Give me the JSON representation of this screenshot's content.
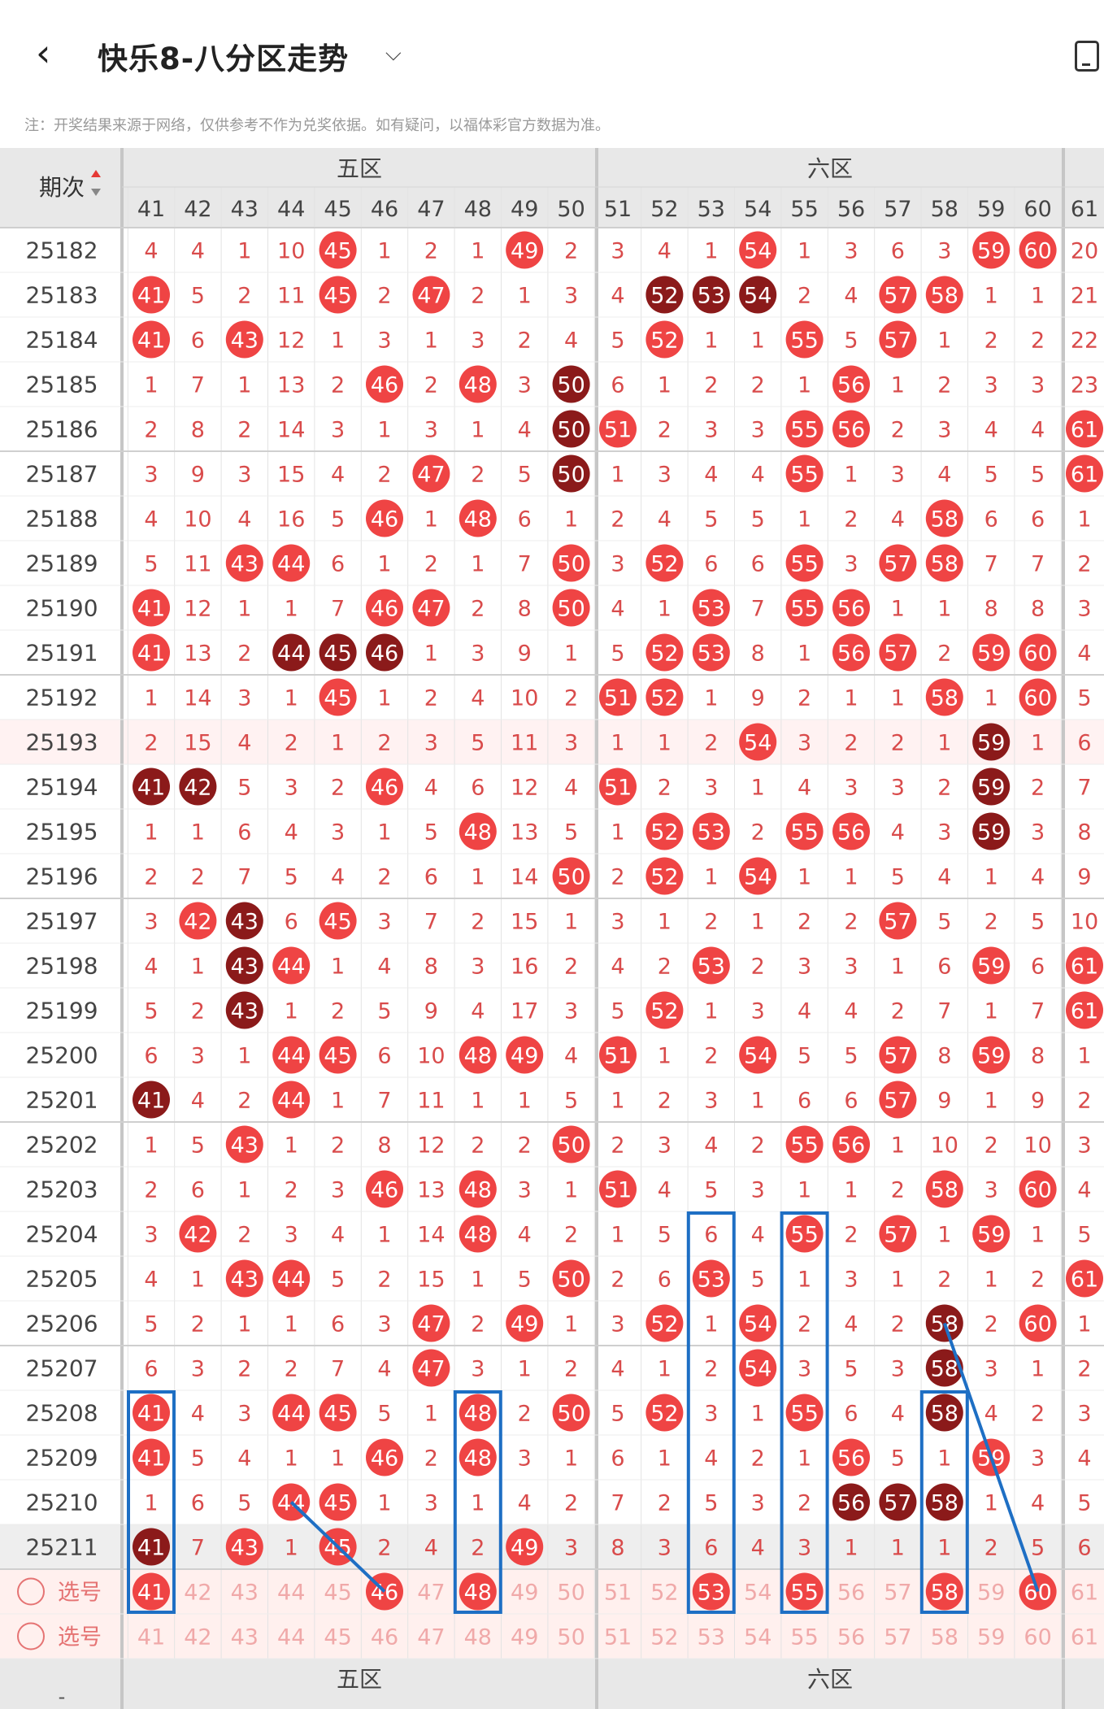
{
  "header": {
    "title": "快乐8-八分区走势",
    "back_icon": "chevron-left-icon",
    "dropdown_icon": "chevron-down-icon",
    "right_icon": "device-screen-icon"
  },
  "note": "注：开奖结果来源于网络，仅供参考不作为兑奖依据。如有疑问，以福体彩官方数据为准。",
  "table": {
    "period_header": "期次",
    "sort_icon": "sort-updown-icon",
    "zones": [
      {
        "label": "五区",
        "cols": [
          41,
          42,
          43,
          44,
          45,
          46,
          47,
          48,
          49,
          50
        ]
      },
      {
        "label": "六区",
        "cols": [
          51,
          52,
          53,
          54,
          55,
          56,
          57,
          58,
          59,
          60
        ]
      },
      {
        "label": "",
        "cols": [
          61
        ]
      }
    ],
    "columns": [
      41,
      42,
      43,
      44,
      45,
      46,
      47,
      48,
      49,
      50,
      51,
      52,
      53,
      54,
      55,
      56,
      57,
      58,
      59,
      60,
      61
    ],
    "rows": [
      {
        "period": "25182",
        "v": [
          "4",
          "4",
          "1",
          "10",
          "R45",
          "1",
          "2",
          "1",
          "R49",
          "2",
          "3",
          "4",
          "1",
          "R54",
          "1",
          "3",
          "6",
          "3",
          "R59",
          "R60",
          "20"
        ]
      },
      {
        "period": "25183",
        "v": [
          "R41",
          "5",
          "2",
          "11",
          "R45",
          "2",
          "R47",
          "2",
          "1",
          "3",
          "4",
          "D52",
          "D53",
          "D54",
          "2",
          "4",
          "R57",
          "R58",
          "1",
          "1",
          "21"
        ]
      },
      {
        "period": "25184",
        "v": [
          "R41",
          "6",
          "R43",
          "12",
          "1",
          "3",
          "1",
          "3",
          "2",
          "4",
          "5",
          "R52",
          "1",
          "1",
          "R55",
          "5",
          "R57",
          "1",
          "2",
          "2",
          "22"
        ]
      },
      {
        "period": "25185",
        "v": [
          "1",
          "7",
          "1",
          "13",
          "2",
          "R46",
          "2",
          "R48",
          "3",
          "D50",
          "6",
          "1",
          "2",
          "2",
          "1",
          "R56",
          "1",
          "2",
          "3",
          "3",
          "23"
        ]
      },
      {
        "period": "25186",
        "v": [
          "2",
          "8",
          "2",
          "14",
          "3",
          "1",
          "3",
          "1",
          "4",
          "D50",
          "R51",
          "2",
          "3",
          "3",
          "R55",
          "R56",
          "2",
          "3",
          "4",
          "4",
          "R61"
        ]
      },
      {
        "period": "25187",
        "v": [
          "3",
          "9",
          "3",
          "15",
          "4",
          "2",
          "R47",
          "2",
          "5",
          "D50",
          "1",
          "3",
          "4",
          "4",
          "R55",
          "1",
          "3",
          "4",
          "5",
          "5",
          "R61"
        ]
      },
      {
        "period": "25188",
        "v": [
          "4",
          "10",
          "4",
          "16",
          "5",
          "R46",
          "1",
          "R48",
          "6",
          "1",
          "2",
          "4",
          "5",
          "5",
          "1",
          "2",
          "4",
          "R58",
          "6",
          "6",
          "1"
        ]
      },
      {
        "period": "25189",
        "v": [
          "5",
          "11",
          "R43",
          "R44",
          "6",
          "1",
          "2",
          "1",
          "7",
          "R50",
          "3",
          "R52",
          "6",
          "6",
          "R55",
          "3",
          "R57",
          "R58",
          "7",
          "7",
          "2"
        ]
      },
      {
        "period": "25190",
        "v": [
          "R41",
          "12",
          "1",
          "1",
          "7",
          "R46",
          "R47",
          "2",
          "8",
          "R50",
          "4",
          "1",
          "R53",
          "7",
          "R55",
          "R56",
          "1",
          "1",
          "8",
          "8",
          "3"
        ]
      },
      {
        "period": "25191",
        "v": [
          "R41",
          "13",
          "2",
          "D44",
          "D45",
          "D46",
          "1",
          "3",
          "9",
          "1",
          "5",
          "R52",
          "R53",
          "8",
          "1",
          "R56",
          "R57",
          "2",
          "R59",
          "R60",
          "4"
        ]
      },
      {
        "period": "25192",
        "v": [
          "1",
          "14",
          "3",
          "1",
          "R45",
          "1",
          "2",
          "4",
          "10",
          "2",
          "R51",
          "R52",
          "1",
          "9",
          "2",
          "1",
          "1",
          "R58",
          "1",
          "R60",
          "5"
        ]
      },
      {
        "period": "25193",
        "v": [
          "2",
          "15",
          "4",
          "2",
          "1",
          "2",
          "3",
          "5",
          "11",
          "3",
          "1",
          "1",
          "2",
          "R54",
          "3",
          "2",
          "2",
          "1",
          "D59",
          "1",
          "6"
        ]
      },
      {
        "period": "25194",
        "v": [
          "D41",
          "D42",
          "5",
          "3",
          "2",
          "R46",
          "4",
          "6",
          "12",
          "4",
          "R51",
          "2",
          "3",
          "1",
          "4",
          "3",
          "3",
          "2",
          "D59",
          "2",
          "7"
        ]
      },
      {
        "period": "25195",
        "v": [
          "1",
          "1",
          "6",
          "4",
          "3",
          "1",
          "5",
          "R48",
          "13",
          "5",
          "1",
          "R52",
          "R53",
          "2",
          "R55",
          "R56",
          "4",
          "3",
          "D59",
          "3",
          "8"
        ]
      },
      {
        "period": "25196",
        "v": [
          "2",
          "2",
          "7",
          "5",
          "4",
          "2",
          "6",
          "1",
          "14",
          "R50",
          "2",
          "R52",
          "1",
          "R54",
          "1",
          "1",
          "5",
          "4",
          "1",
          "4",
          "9"
        ]
      },
      {
        "period": "25197",
        "v": [
          "3",
          "R42",
          "D43",
          "6",
          "R45",
          "3",
          "7",
          "2",
          "15",
          "1",
          "3",
          "1",
          "2",
          "1",
          "2",
          "2",
          "R57",
          "5",
          "2",
          "5",
          "10"
        ]
      },
      {
        "period": "25198",
        "v": [
          "4",
          "1",
          "D43",
          "R44",
          "1",
          "4",
          "8",
          "3",
          "16",
          "2",
          "4",
          "2",
          "R53",
          "2",
          "3",
          "3",
          "1",
          "6",
          "R59",
          "6",
          "R61"
        ]
      },
      {
        "period": "25199",
        "v": [
          "5",
          "2",
          "D43",
          "1",
          "2",
          "5",
          "9",
          "4",
          "17",
          "3",
          "5",
          "R52",
          "1",
          "3",
          "4",
          "4",
          "2",
          "7",
          "1",
          "7",
          "R61"
        ]
      },
      {
        "period": "25200",
        "v": [
          "6",
          "3",
          "1",
          "R44",
          "R45",
          "6",
          "10",
          "R48",
          "R49",
          "4",
          "R51",
          "1",
          "2",
          "R54",
          "5",
          "5",
          "R57",
          "8",
          "R59",
          "8",
          "1"
        ]
      },
      {
        "period": "25201",
        "v": [
          "D41",
          "4",
          "2",
          "R44",
          "1",
          "7",
          "11",
          "1",
          "1",
          "5",
          "1",
          "2",
          "3",
          "1",
          "6",
          "6",
          "R57",
          "9",
          "1",
          "9",
          "2"
        ]
      },
      {
        "period": "25202",
        "v": [
          "1",
          "5",
          "R43",
          "1",
          "2",
          "8",
          "12",
          "2",
          "2",
          "R50",
          "2",
          "3",
          "4",
          "2",
          "R55",
          "R56",
          "1",
          "10",
          "2",
          "10",
          "3"
        ]
      },
      {
        "period": "25203",
        "v": [
          "2",
          "6",
          "1",
          "2",
          "3",
          "R46",
          "13",
          "R48",
          "3",
          "1",
          "R51",
          "4",
          "5",
          "3",
          "1",
          "1",
          "2",
          "R58",
          "3",
          "R60",
          "4"
        ]
      },
      {
        "period": "25204",
        "v": [
          "3",
          "R42",
          "2",
          "3",
          "4",
          "1",
          "14",
          "R48",
          "4",
          "2",
          "1",
          "5",
          "6",
          "4",
          "R55",
          "2",
          "R57",
          "1",
          "R59",
          "1",
          "5"
        ]
      },
      {
        "period": "25205",
        "v": [
          "4",
          "1",
          "R43",
          "R44",
          "5",
          "2",
          "15",
          "1",
          "5",
          "R50",
          "2",
          "6",
          "R53",
          "5",
          "1",
          "3",
          "1",
          "2",
          "1",
          "2",
          "R61"
        ]
      },
      {
        "period": "25206",
        "v": [
          "5",
          "2",
          "1",
          "1",
          "6",
          "3",
          "R47",
          "2",
          "R49",
          "1",
          "3",
          "R52",
          "1",
          "R54",
          "2",
          "4",
          "2",
          "D58",
          "2",
          "R60",
          "1"
        ]
      },
      {
        "period": "25207",
        "v": [
          "6",
          "3",
          "2",
          "2",
          "7",
          "4",
          "R47",
          "3",
          "1",
          "2",
          "4",
          "1",
          "2",
          "R54",
          "3",
          "5",
          "3",
          "D58",
          "3",
          "1",
          "2"
        ]
      },
      {
        "period": "25208",
        "v": [
          "R41",
          "4",
          "3",
          "R44",
          "R45",
          "5",
          "1",
          "R48",
          "2",
          "R50",
          "5",
          "R52",
          "3",
          "1",
          "R55",
          "6",
          "4",
          "D58",
          "4",
          "2",
          "3"
        ]
      },
      {
        "period": "25209",
        "v": [
          "R41",
          "5",
          "4",
          "1",
          "1",
          "R46",
          "2",
          "R48",
          "3",
          "1",
          "6",
          "1",
          "4",
          "2",
          "1",
          "R56",
          "5",
          "1",
          "R59",
          "3",
          "4"
        ]
      },
      {
        "period": "25210",
        "v": [
          "1",
          "6",
          "5",
          "R44",
          "R45",
          "1",
          "3",
          "1",
          "4",
          "2",
          "7",
          "2",
          "5",
          "3",
          "2",
          "D56",
          "D57",
          "D58",
          "1",
          "4",
          "5"
        ]
      },
      {
        "period": "25211",
        "v": [
          "D41",
          "7",
          "R43",
          "1",
          "R45",
          "2",
          "4",
          "2",
          "R49",
          "3",
          "8",
          "3",
          "6",
          "4",
          "3",
          "1",
          "1",
          "1",
          "2",
          "5",
          "6"
        ]
      }
    ],
    "select_rows": [
      {
        "label": "选号",
        "v": [
          "R41",
          "42",
          "43",
          "44",
          "45",
          "R46",
          "47",
          "R48",
          "49",
          "50",
          "51",
          "52",
          "R53",
          "54",
          "R55",
          "56",
          "57",
          "R58",
          "59",
          "R60",
          "61"
        ]
      },
      {
        "label": "选号",
        "v": [
          "41",
          "42",
          "43",
          "44",
          "45",
          "46",
          "47",
          "48",
          "49",
          "50",
          "51",
          "52",
          "53",
          "54",
          "55",
          "56",
          "57",
          "58",
          "59",
          "60",
          "61"
        ]
      }
    ]
  },
  "colors": {
    "ball_red": "#ef4444",
    "ball_dark": "#8b1a1a",
    "text_red": "#d94b4b",
    "header_bg": "#e8e8e8",
    "select_bg": "#fff0ee",
    "highlight_blue": "#1e6fc4"
  }
}
